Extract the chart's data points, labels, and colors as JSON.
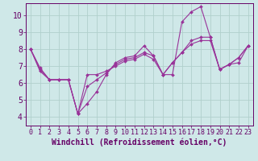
{
  "title": "",
  "xlabel": "Windchill (Refroidissement éolien,°C)",
  "ylabel": "",
  "bg_color": "#cfe8e8",
  "line_color": "#993399",
  "grid_color": "#b0d0cc",
  "xlim": [
    -0.5,
    23.5
  ],
  "ylim": [
    3.5,
    10.7
  ],
  "yticks": [
    4,
    5,
    6,
    7,
    8,
    9,
    10
  ],
  "xticks": [
    0,
    1,
    2,
    3,
    4,
    5,
    6,
    7,
    8,
    9,
    10,
    11,
    12,
    13,
    14,
    15,
    16,
    17,
    18,
    19,
    20,
    21,
    22,
    23
  ],
  "series": [
    [
      8.0,
      6.9,
      6.2,
      6.2,
      6.2,
      4.2,
      4.8,
      5.5,
      6.5,
      7.2,
      7.5,
      7.6,
      8.2,
      7.6,
      6.5,
      6.5,
      9.6,
      10.2,
      10.5,
      8.7,
      6.8,
      7.1,
      7.5,
      8.2
    ],
    [
      8.0,
      6.8,
      6.2,
      6.2,
      6.2,
      4.2,
      5.8,
      6.2,
      6.6,
      7.1,
      7.4,
      7.5,
      7.8,
      7.6,
      6.5,
      7.2,
      7.8,
      8.5,
      8.7,
      8.7,
      6.8,
      7.1,
      7.5,
      8.2
    ],
    [
      8.0,
      6.7,
      6.2,
      6.2,
      6.2,
      4.2,
      6.5,
      6.5,
      6.7,
      7.0,
      7.3,
      7.4,
      7.7,
      7.4,
      6.5,
      7.2,
      7.8,
      8.3,
      8.5,
      8.5,
      6.8,
      7.1,
      7.2,
      8.2
    ]
  ],
  "marker_style": "D",
  "marker_size": 2,
  "font_color": "#660066",
  "font_size_xlabel": 7,
  "font_size_ytick": 7,
  "font_size_xtick": 6,
  "spine_color": "#660066"
}
